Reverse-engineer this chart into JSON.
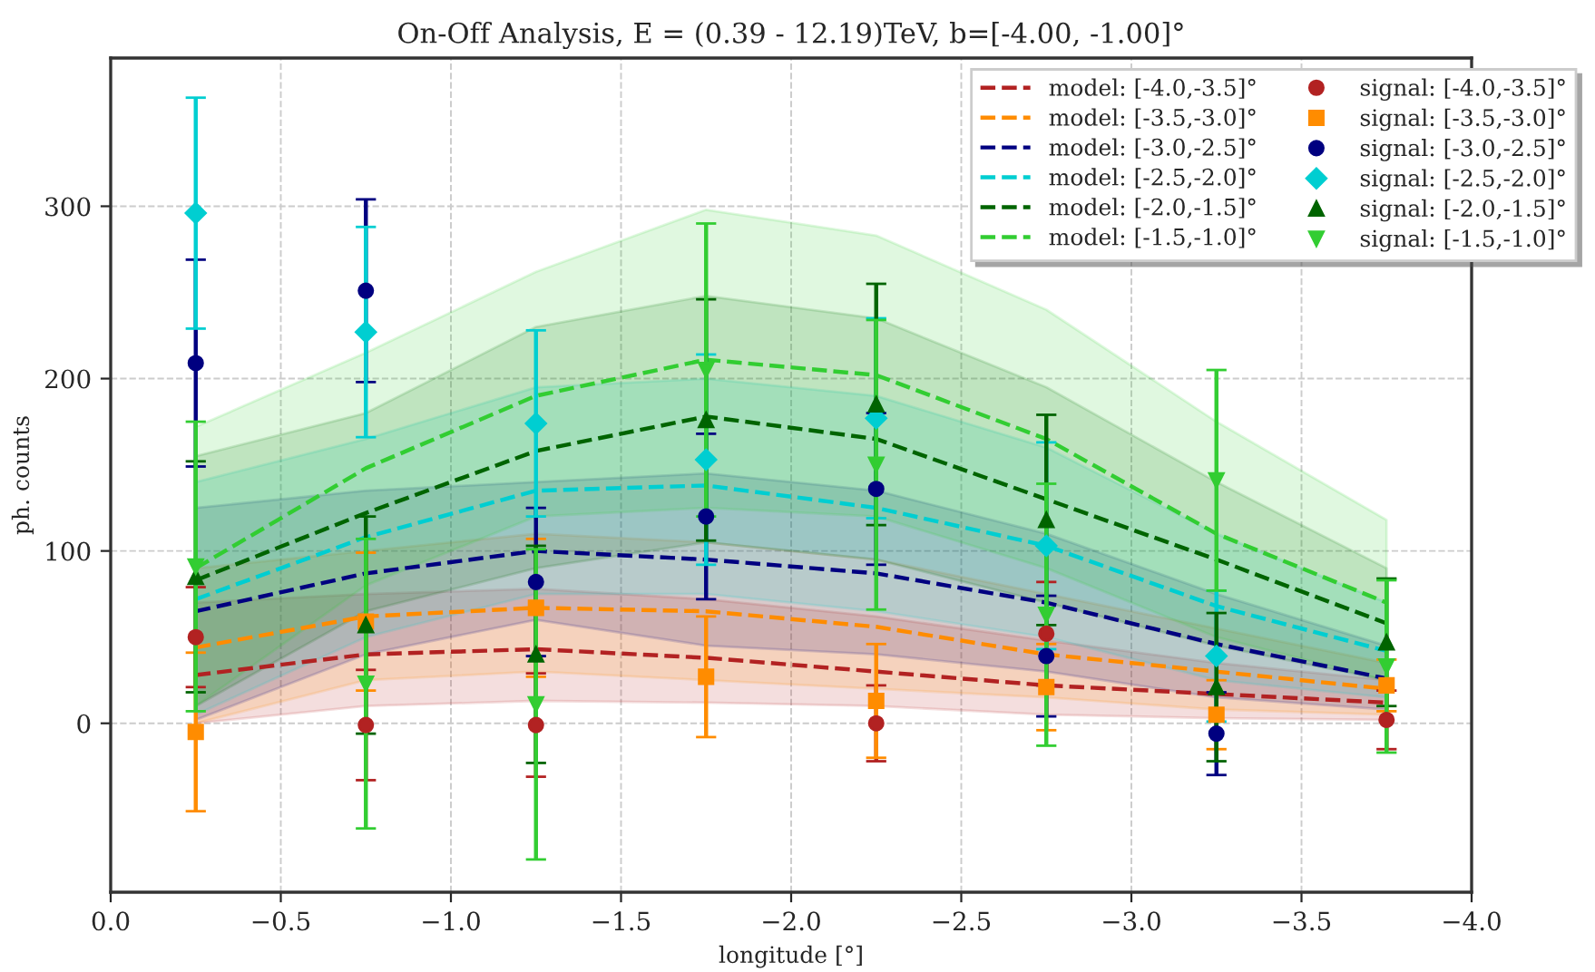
{
  "chart_data": {
    "type": "line",
    "title": "On-Off Analysis, E = (0.39 - 12.19)TeV, b=[-4.00, -1.00]°",
    "xlabel": "longitude [°]",
    "ylabel": "ph. counts",
    "x": [
      -0.25,
      -0.75,
      -1.25,
      -1.75,
      -2.25,
      -2.75,
      -3.25,
      -3.75
    ],
    "xlim": [
      0.0,
      -4.0
    ],
    "xticks": [
      {
        "value": 0.0,
        "label": "0.0"
      },
      {
        "value": -0.5,
        "label": "−0.5"
      },
      {
        "value": -1.0,
        "label": "−1.0"
      },
      {
        "value": -1.5,
        "label": "−1.5"
      },
      {
        "value": -2.0,
        "label": "−2.0"
      },
      {
        "value": -2.5,
        "label": "−2.5"
      },
      {
        "value": -3.0,
        "label": "−3.0"
      },
      {
        "value": -3.5,
        "label": "−3.5"
      },
      {
        "value": -4.0,
        "label": "−4.0"
      }
    ],
    "ylim": [
      -98,
      386
    ],
    "yticks": [
      0,
      100,
      200,
      300
    ],
    "grid": true,
    "legend": "top right",
    "series": [
      {
        "name": "model: [-4.0,-3.5]°",
        "color": "#b22222",
        "line_style": "dashed",
        "values": [
          28,
          40,
          43,
          38,
          30,
          22,
          17,
          12
        ],
        "lower": [
          0,
          10,
          13,
          12,
          10,
          5,
          3,
          2
        ],
        "upper": [
          70,
          75,
          78,
          72,
          62,
          48,
          35,
          25
        ]
      },
      {
        "name": "model: [-3.5,-3.0]°",
        "color": "#ff8c00",
        "line_style": "dashed",
        "values": [
          44,
          62,
          67,
          65,
          56,
          40,
          30,
          20
        ],
        "lower": [
          0,
          25,
          30,
          25,
          20,
          15,
          8,
          5
        ],
        "upper": [
          90,
          100,
          110,
          105,
          95,
          75,
          55,
          35
        ]
      },
      {
        "name": "model: [-3.0,-2.5]°",
        "color": "#000080",
        "line_style": "dashed",
        "values": [
          65,
          87,
          100,
          95,
          87,
          70,
          46,
          26
        ],
        "lower": [
          2,
          40,
          60,
          45,
          40,
          30,
          15,
          8
        ],
        "upper": [
          125,
          135,
          140,
          145,
          135,
          110,
          75,
          45
        ]
      },
      {
        "name": "model: [-2.5,-2.0]°",
        "color": "#00ced1",
        "line_style": "dashed",
        "values": [
          72,
          108,
          135,
          138,
          125,
          103,
          68,
          42
        ],
        "lower": [
          5,
          50,
          75,
          75,
          65,
          50,
          25,
          15
        ],
        "upper": [
          140,
          165,
          195,
          200,
          190,
          160,
          110,
          70
        ]
      },
      {
        "name": "model: [-2.0,-1.5]°",
        "color": "#006400",
        "line_style": "dashed",
        "values": [
          83,
          122,
          158,
          178,
          165,
          130,
          95,
          58
        ],
        "lower": [
          10,
          65,
          90,
          105,
          95,
          70,
          45,
          25
        ],
        "upper": [
          155,
          180,
          230,
          248,
          235,
          195,
          140,
          90
        ]
      },
      {
        "name": "model: [-1.5,-1.0]°",
        "color": "#32cd32",
        "line_style": "dashed",
        "values": [
          90,
          148,
          190,
          211,
          202,
          165,
          110,
          70
        ],
        "lower": [
          10,
          80,
          120,
          125,
          120,
          90,
          50,
          25
        ],
        "upper": [
          172,
          215,
          262,
          298,
          283,
          240,
          175,
          118
        ]
      },
      {
        "type": "scatter",
        "name": "signal: [-4.0,-3.5]°",
        "color": "#b22222",
        "marker": "circle",
        "values": [
          50,
          -1,
          -1,
          null,
          0,
          52,
          null,
          2
        ],
        "errors": [
          29,
          32,
          30,
          null,
          22,
          30,
          null,
          17
        ]
      },
      {
        "type": "scatter",
        "name": "signal: [-3.5,-3.0]°",
        "color": "#ff8c00",
        "marker": "square",
        "values": [
          -5,
          59,
          67,
          27,
          13,
          21,
          5,
          22
        ],
        "errors": [
          46,
          40,
          40,
          35,
          33,
          25,
          20,
          15
        ]
      },
      {
        "type": "scatter",
        "name": "signal: [-3.0,-2.5]°",
        "color": "#000080",
        "marker": "circle",
        "values": [
          209,
          251,
          82,
          120,
          136,
          39,
          -6,
          null
        ],
        "errors": [
          60,
          53,
          43,
          48,
          44,
          35,
          24,
          null
        ]
      },
      {
        "type": "scatter",
        "name": "signal: [-2.5,-2.0]°",
        "color": "#00ced1",
        "marker": "diamond",
        "values": [
          296,
          227,
          174,
          153,
          177,
          103,
          39,
          null
        ],
        "errors": [
          67,
          61,
          54,
          61,
          58,
          60,
          38,
          null
        ]
      },
      {
        "type": "scatter",
        "name": "signal: [-2.0,-1.5]°",
        "color": "#006400",
        "marker": "triangle",
        "values": [
          85,
          57,
          40,
          176,
          185,
          118,
          21,
          47
        ],
        "errors": [
          67,
          63,
          63,
          70,
          70,
          61,
          43,
          37
        ]
      },
      {
        "type": "scatter",
        "name": "signal: [-1.5,-1.0]°",
        "color": "#32cd32",
        "marker": "triangle_down",
        "values": [
          91,
          23,
          11,
          205,
          150,
          63,
          141,
          33
        ],
        "errors": [
          84,
          84,
          90,
          85,
          84,
          76,
          64,
          50
        ]
      }
    ]
  }
}
